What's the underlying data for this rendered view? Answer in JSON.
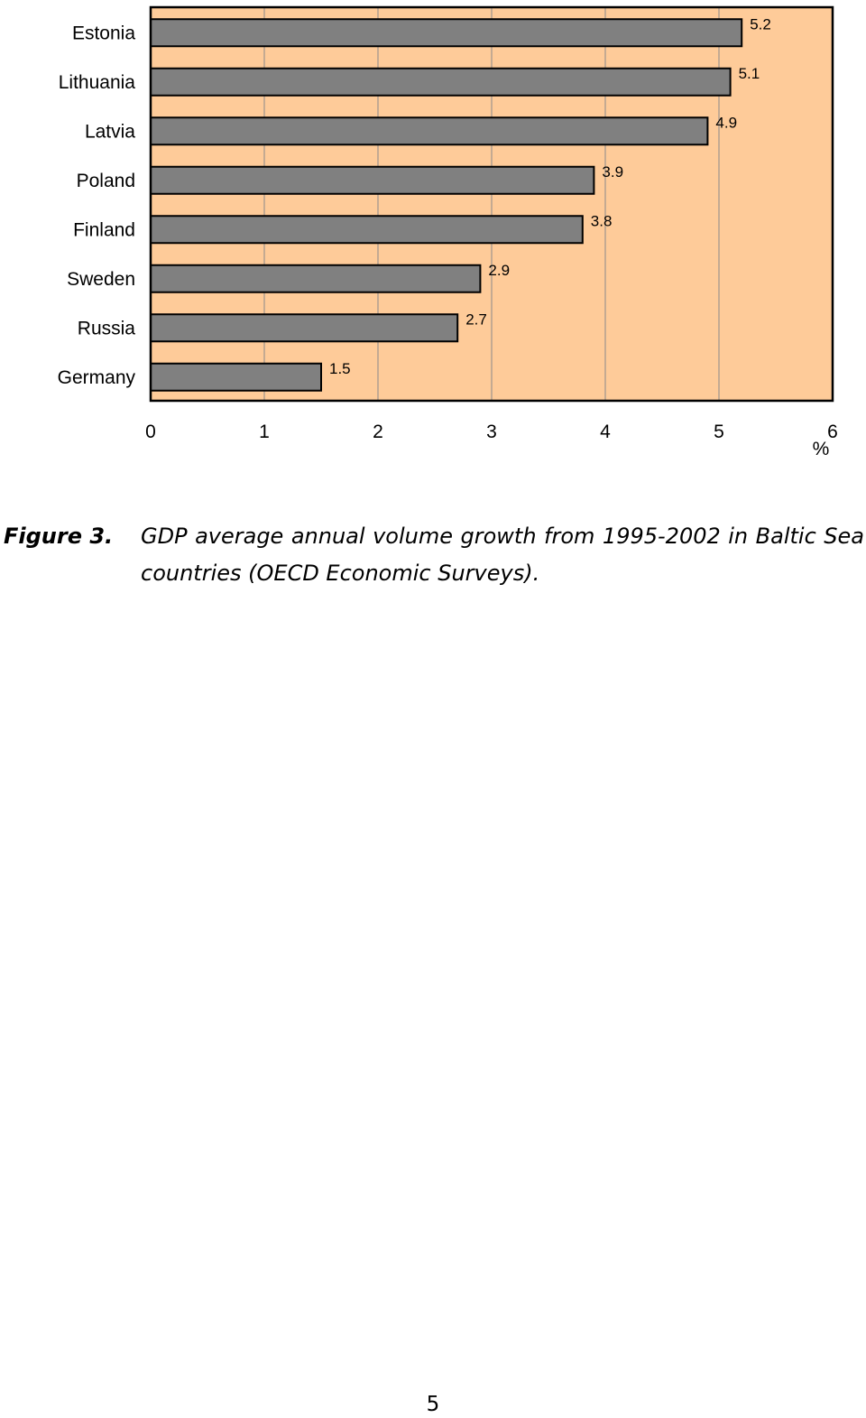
{
  "chart_data": {
    "type": "bar",
    "orientation": "horizontal",
    "categories": [
      "Estonia",
      "Lithuania",
      "Latvia",
      "Poland",
      "Finland",
      "Sweden",
      "Russia",
      "Germany"
    ],
    "values": [
      5.2,
      5.1,
      4.9,
      3.9,
      3.8,
      2.9,
      2.7,
      1.5
    ],
    "data_labels": [
      "5.2",
      "5.1",
      "4.9",
      "3.9",
      "3.8",
      "2.9",
      "2.7",
      "1.5"
    ],
    "x_ticks": [
      "0",
      "1",
      "2",
      "3",
      "4",
      "5",
      "6"
    ],
    "xlim": [
      0,
      6
    ],
    "xlabel": "%",
    "grid": true,
    "colors": {
      "plot_background": "#fecb99",
      "bar_fill": "#808080",
      "bar_stroke": "#000000",
      "gridline": "#8a8a8a"
    }
  },
  "caption": {
    "figure_number": "Figure 3.",
    "text": "GDP average annual volume growth from 1995-2002 in Baltic Sea countries (OECD Economic Surveys)."
  },
  "page_number": "5"
}
